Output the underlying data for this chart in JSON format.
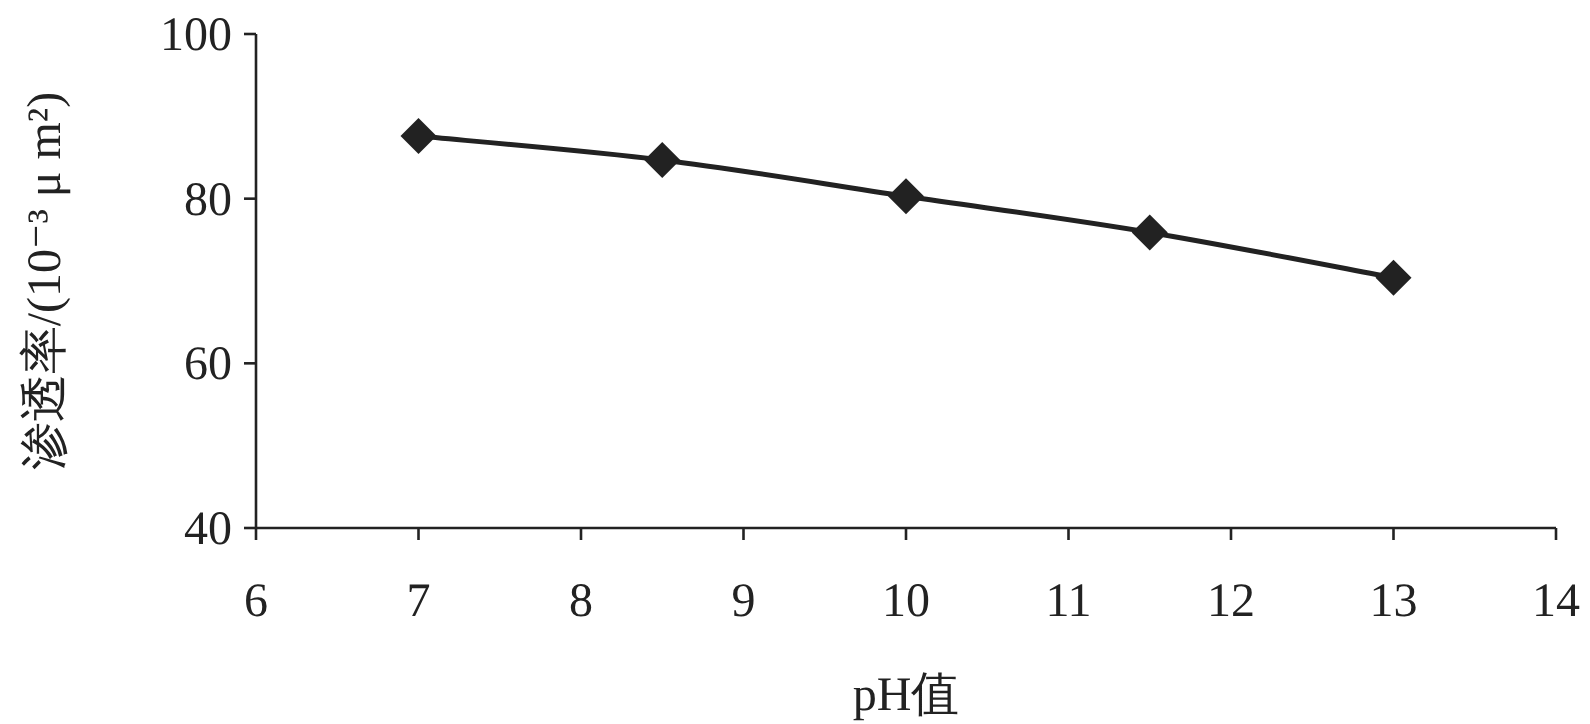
{
  "chart_data": {
    "type": "line",
    "xlabel": "pH值",
    "ylabel": "渗透率/(10⁻³ μ m²)",
    "x": [
      7,
      8.5,
      10,
      11.5,
      13
    ],
    "series": [
      {
        "color": "#222222",
        "values": [
          87.6,
          84.7,
          80.3,
          75.9,
          70.4
        ]
      }
    ],
    "xlim": [
      6,
      14
    ],
    "xticks": [
      6,
      7,
      8,
      9,
      10,
      11,
      12,
      13,
      14
    ],
    "ylim": [
      40,
      100
    ],
    "yticks": [
      40,
      60,
      80,
      100
    ],
    "marker": "diamond",
    "line_style": "solid",
    "grid": false
  }
}
